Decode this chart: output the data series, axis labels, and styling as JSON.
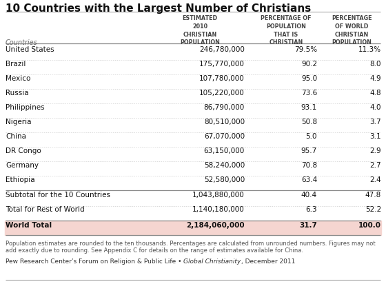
{
  "title": "10 Countries with the Largest Number of Christians",
  "col_headers": [
    "",
    "ESTIMATED\n2010\nCHRISTIAN\nPOPULATION",
    "PERCENTAGE OF\nPOPULATION\nTHAT IS\nCHRISTIAN",
    "PERCENTAGE\nOF WORLD\nCHRISTIAN\nPOPULATION"
  ],
  "subheader_country": "Countries",
  "rows": [
    [
      "United States",
      "246,780,000",
      "79.5%",
      "11.3%"
    ],
    [
      "Brazil",
      "175,770,000",
      "90.2",
      "8.0"
    ],
    [
      "Mexico",
      "107,780,000",
      "95.0",
      "4.9"
    ],
    [
      "Russia",
      "105,220,000",
      "73.6",
      "4.8"
    ],
    [
      "Philippines",
      "86,790,000",
      "93.1",
      "4.0"
    ],
    [
      "Nigeria",
      "80,510,000",
      "50.8",
      "3.7"
    ],
    [
      "China",
      "67,070,000",
      "5.0",
      "3.1"
    ],
    [
      "DR Congo",
      "63,150,000",
      "95.7",
      "2.9"
    ],
    [
      "Germany",
      "58,240,000",
      "70.8",
      "2.7"
    ],
    [
      "Ethiopia",
      "52,580,000",
      "63.4",
      "2.4"
    ]
  ],
  "subtotal_row": [
    "Subtotal for the 10 Countries",
    "1,043,880,000",
    "40.4",
    "47.8"
  ],
  "restofworld_row": [
    "Total for Rest of World",
    "1,140,180,000",
    "6.3",
    "52.2"
  ],
  "total_row": [
    "World Total",
    "2,184,060,000",
    "31.7",
    "100.0"
  ],
  "footnote1": "Population estimates are rounded to the ten thousands. Percentages are calculated from unrounded numbers. Figures may not",
  "footnote2": "add exactly due to rounding. See Appendix C for details on the range of estimates available for China.",
  "source_plain1": "Pew Research Center’s Forum on Religion & Public Life • ",
  "source_italic": "Global Christianity",
  "source_plain2": ", December 2011",
  "bg_color": "#ffffff",
  "total_row_bg": "#f5d5d0",
  "header_text_color": "#444444",
  "row_text_color": "#111111",
  "title_color": "#111111",
  "footnote_color": "#555555",
  "source_color": "#333333",
  "top_border_color": "#aaaaaa",
  "row_line_color": "#cccccc",
  "solid_line_color": "#888888"
}
